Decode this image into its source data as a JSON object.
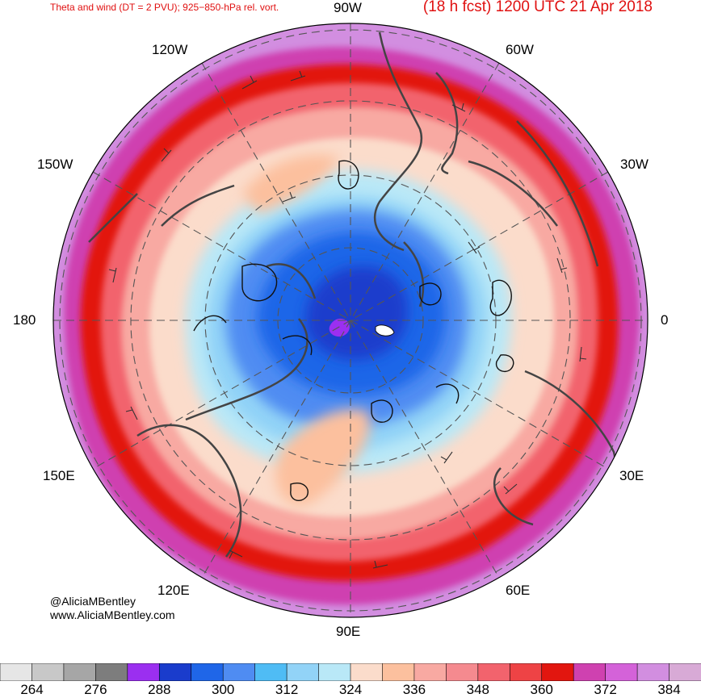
{
  "title": {
    "left": "Theta and wind (DT = 2 PVU); 925−850-hPa rel. vort.",
    "right": "(18 h fcst) 1200 UTC 21 Apr 2018"
  },
  "longitude_labels": {
    "w90": "90W",
    "w60": "60W",
    "w30": "30W",
    "zero": "0",
    "e30": "30E",
    "e60": "60E",
    "e90": "90E",
    "e120": "120E",
    "e150": "150E",
    "d180": "180",
    "w150": "150W",
    "w120": "120W"
  },
  "credits": {
    "handle": "@AliciaMBentley",
    "site": "www.AliciaMBentley.com"
  },
  "colorbar": {
    "colors": [
      "#e6e6e6",
      "#c8c8c8",
      "#a6a6a6",
      "#7d7d7d",
      "#9b2ff0",
      "#1a3ccc",
      "#1f66e8",
      "#4f8cf2",
      "#4fbcf5",
      "#92d3f7",
      "#b9e8f7",
      "#fbdccb",
      "#fcc09e",
      "#f8a9a2",
      "#f58a8f",
      "#f2636d",
      "#ee4345",
      "#e2160f",
      "#cf41b0",
      "#d462d9",
      "#d28ee0",
      "#d8aad6"
    ],
    "labels": [
      "264",
      "276",
      "288",
      "300",
      "312",
      "324",
      "336",
      "348",
      "360",
      "372",
      "384"
    ]
  },
  "map": {
    "projection": "north polar stereographic",
    "fill_field": "potential temperature on 2-PVU surface (K)",
    "overlays": [
      "wind barbs",
      "925-850-hPa relative vorticity contours",
      "coastlines",
      "country borders",
      "lat/lon grid"
    ]
  }
}
